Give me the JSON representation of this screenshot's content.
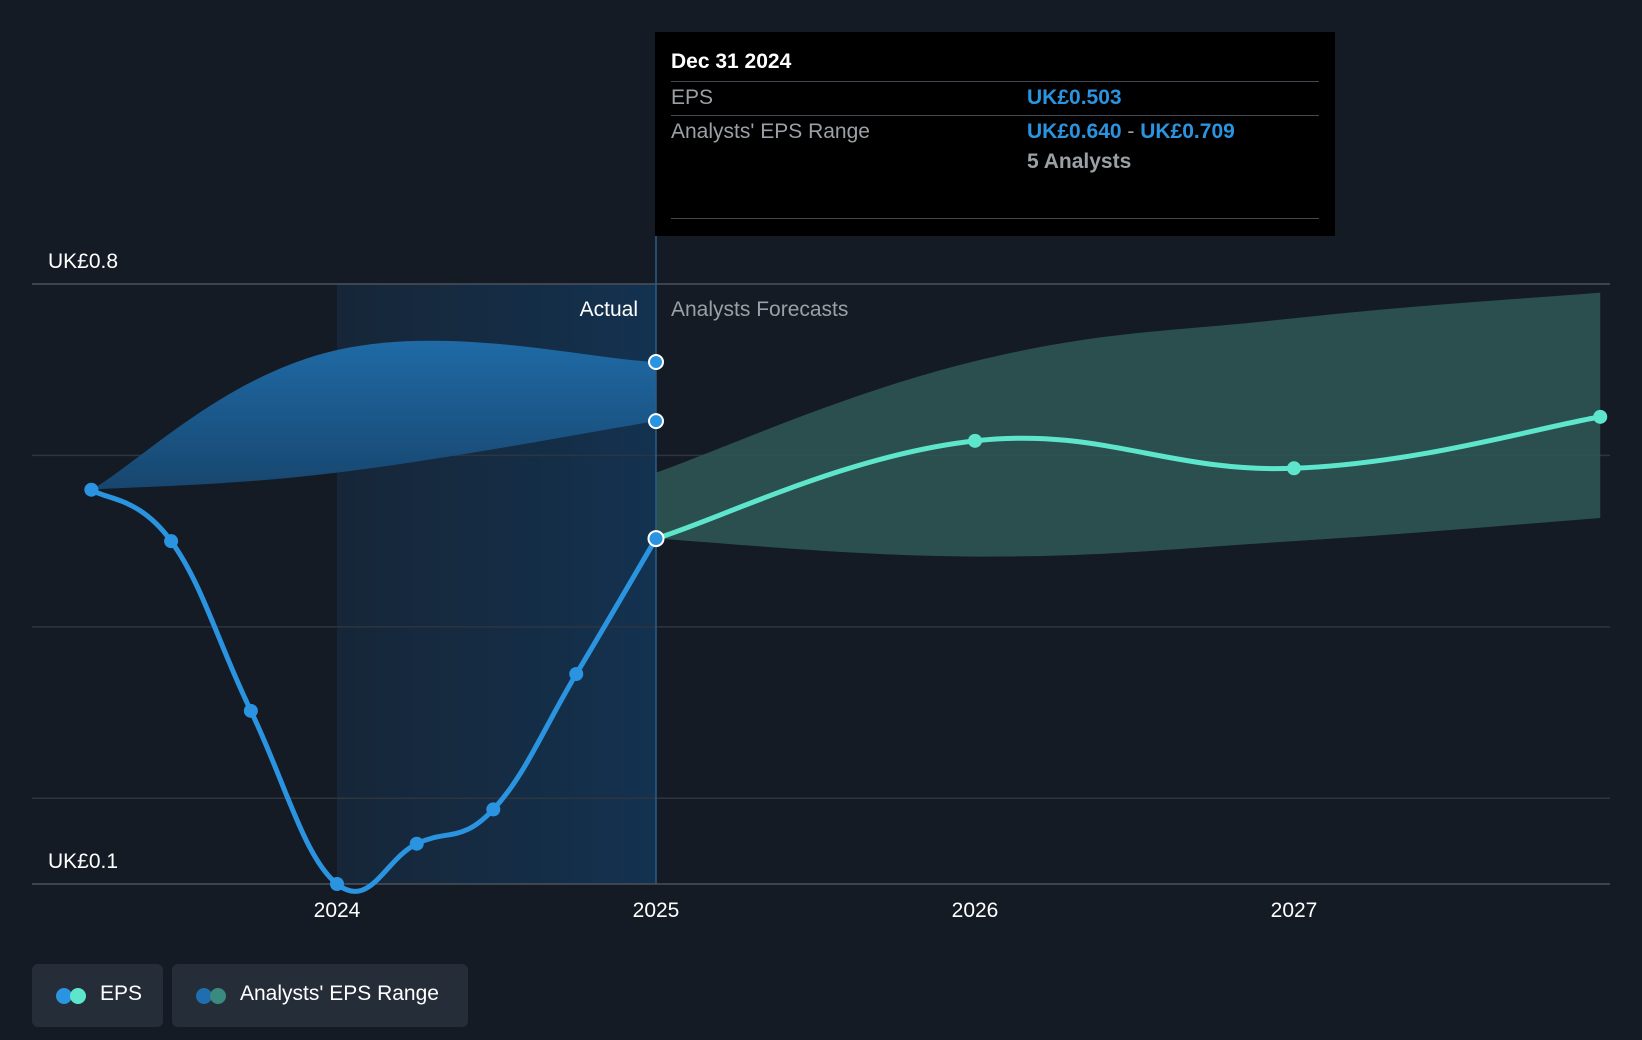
{
  "chart_data": {
    "type": "line",
    "y_axis": {
      "min": 0.1,
      "max": 0.8,
      "top_label": "UK£0.8",
      "bottom_label": "UK£0.1",
      "gridlines": [
        0.8,
        0.6,
        0.4,
        0.2
      ]
    },
    "x_axis": {
      "ticks": [
        {
          "label": "2024",
          "value": 2024.0
        },
        {
          "label": "2025",
          "value": 2025.0
        },
        {
          "label": "2026",
          "value": 2026.0
        },
        {
          "label": "2027",
          "value": 2027.0
        }
      ],
      "range": [
        2023.0,
        2027.96
      ]
    },
    "regions": {
      "actual_label": "Actual",
      "forecast_label": "Analysts Forecasts",
      "divider": 2025.0,
      "highlight_start": 2024.0
    },
    "series": [
      {
        "name": "EPS",
        "kind": "actual",
        "color": "#2b94e0",
        "points": [
          [
            2023.23,
            0.56
          ],
          [
            2023.48,
            0.5
          ],
          [
            2023.73,
            0.302
          ],
          [
            2024.0,
            0.1
          ],
          [
            2024.25,
            0.147
          ],
          [
            2024.49,
            0.187
          ],
          [
            2024.75,
            0.345
          ],
          [
            2025.0,
            0.503
          ]
        ]
      },
      {
        "name": "EPS",
        "kind": "forecast",
        "color": "#5ee6cc",
        "points": [
          [
            2025.0,
            0.503
          ],
          [
            2026.0,
            0.617
          ],
          [
            2027.0,
            0.585
          ],
          [
            2027.96,
            0.645
          ]
        ]
      }
    ],
    "ranges": [
      {
        "name": "Analysts' EPS Range",
        "kind": "actual",
        "color": "#1f6fae",
        "upper": [
          [
            2023.23,
            0.56
          ],
          [
            2024.0,
            0.723
          ],
          [
            2025.0,
            0.709
          ]
        ],
        "lower": [
          [
            2023.23,
            0.56
          ],
          [
            2024.0,
            0.58
          ],
          [
            2025.0,
            0.64
          ]
        ]
      },
      {
        "name": "Analysts' EPS Range",
        "kind": "forecast",
        "color": "#2e5856",
        "upper": [
          [
            2025.0,
            0.58
          ],
          [
            2026.0,
            0.71
          ],
          [
            2027.0,
            0.76
          ],
          [
            2027.96,
            0.79
          ]
        ],
        "lower": [
          [
            2025.0,
            0.503
          ],
          [
            2026.0,
            0.482
          ],
          [
            2027.0,
            0.5
          ],
          [
            2027.96,
            0.527
          ]
        ]
      }
    ]
  },
  "tooltip": {
    "date": "Dec 31 2024",
    "eps_label": "EPS",
    "eps_value": "UK£0.503",
    "range_label": "Analysts' EPS Range",
    "range_low": "UK£0.640",
    "range_sep": " - ",
    "range_high": "UK£0.709",
    "analysts": "5 Analysts"
  },
  "legend": {
    "eps_label": "EPS",
    "range_label": "Analysts' EPS Range",
    "eps_colors": [
      "#2b94e0",
      "#5ee6cc"
    ],
    "range_colors": [
      "#1f6fae",
      "#3a8a80"
    ]
  }
}
